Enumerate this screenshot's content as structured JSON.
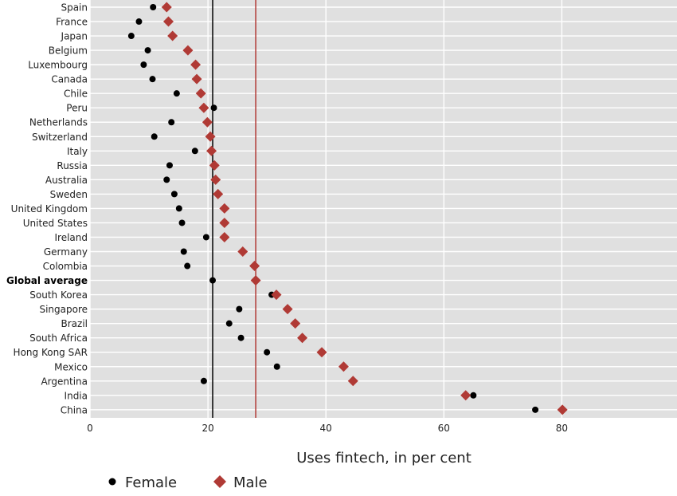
{
  "chart_data": {
    "type": "scatter",
    "categories": [
      "Spain",
      "France",
      "Japan",
      "Belgium",
      "Luxembourg",
      "Canada",
      "Chile",
      "Peru",
      "Netherlands",
      "Switzerland",
      "Italy",
      "Russia",
      "Australia",
      "Sweden",
      "United Kingdom",
      "United States",
      "Ireland",
      "Germany",
      "Colombia",
      "Global average",
      "South Korea",
      "Singapore",
      "Brazil",
      "South Africa",
      "Hong Kong SAR",
      "Mexico",
      "Argentina",
      "India",
      "China"
    ],
    "bold_categories": [
      "Global average"
    ],
    "series": [
      {
        "name": "Female",
        "marker": "circle",
        "color": "#000000",
        "values": [
          10.7,
          8.3,
          7.0,
          9.8,
          9.1,
          10.6,
          14.7,
          21.0,
          13.8,
          10.9,
          17.8,
          13.5,
          13.0,
          14.3,
          15.1,
          15.6,
          19.7,
          15.9,
          16.5,
          20.8,
          30.8,
          25.3,
          23.6,
          25.6,
          30.0,
          31.7,
          19.3,
          65.0,
          75.5
        ]
      },
      {
        "name": "Male",
        "marker": "diamond",
        "color": "#b03a35",
        "values": [
          13.0,
          13.3,
          14.0,
          16.6,
          17.9,
          18.1,
          18.8,
          19.3,
          19.9,
          20.4,
          20.6,
          21.1,
          21.3,
          21.7,
          22.8,
          22.8,
          22.8,
          25.9,
          27.9,
          28.1,
          31.6,
          33.5,
          34.8,
          36.0,
          39.3,
          43.0,
          44.6,
          63.7,
          80.1
        ]
      }
    ],
    "reference_lines": [
      {
        "value": 20.8,
        "color": "#000000"
      },
      {
        "value": 28.1,
        "color": "#b03a35"
      }
    ],
    "xlabel": "Uses fintech, in per cent",
    "xlim": [
      0,
      99
    ],
    "xticks": [
      0,
      20,
      40,
      60,
      80
    ],
    "grid": true,
    "legend_position": "bottom-left",
    "colors": {
      "panel_bg": "#e0e0e0",
      "grid": "#ffffff"
    }
  }
}
